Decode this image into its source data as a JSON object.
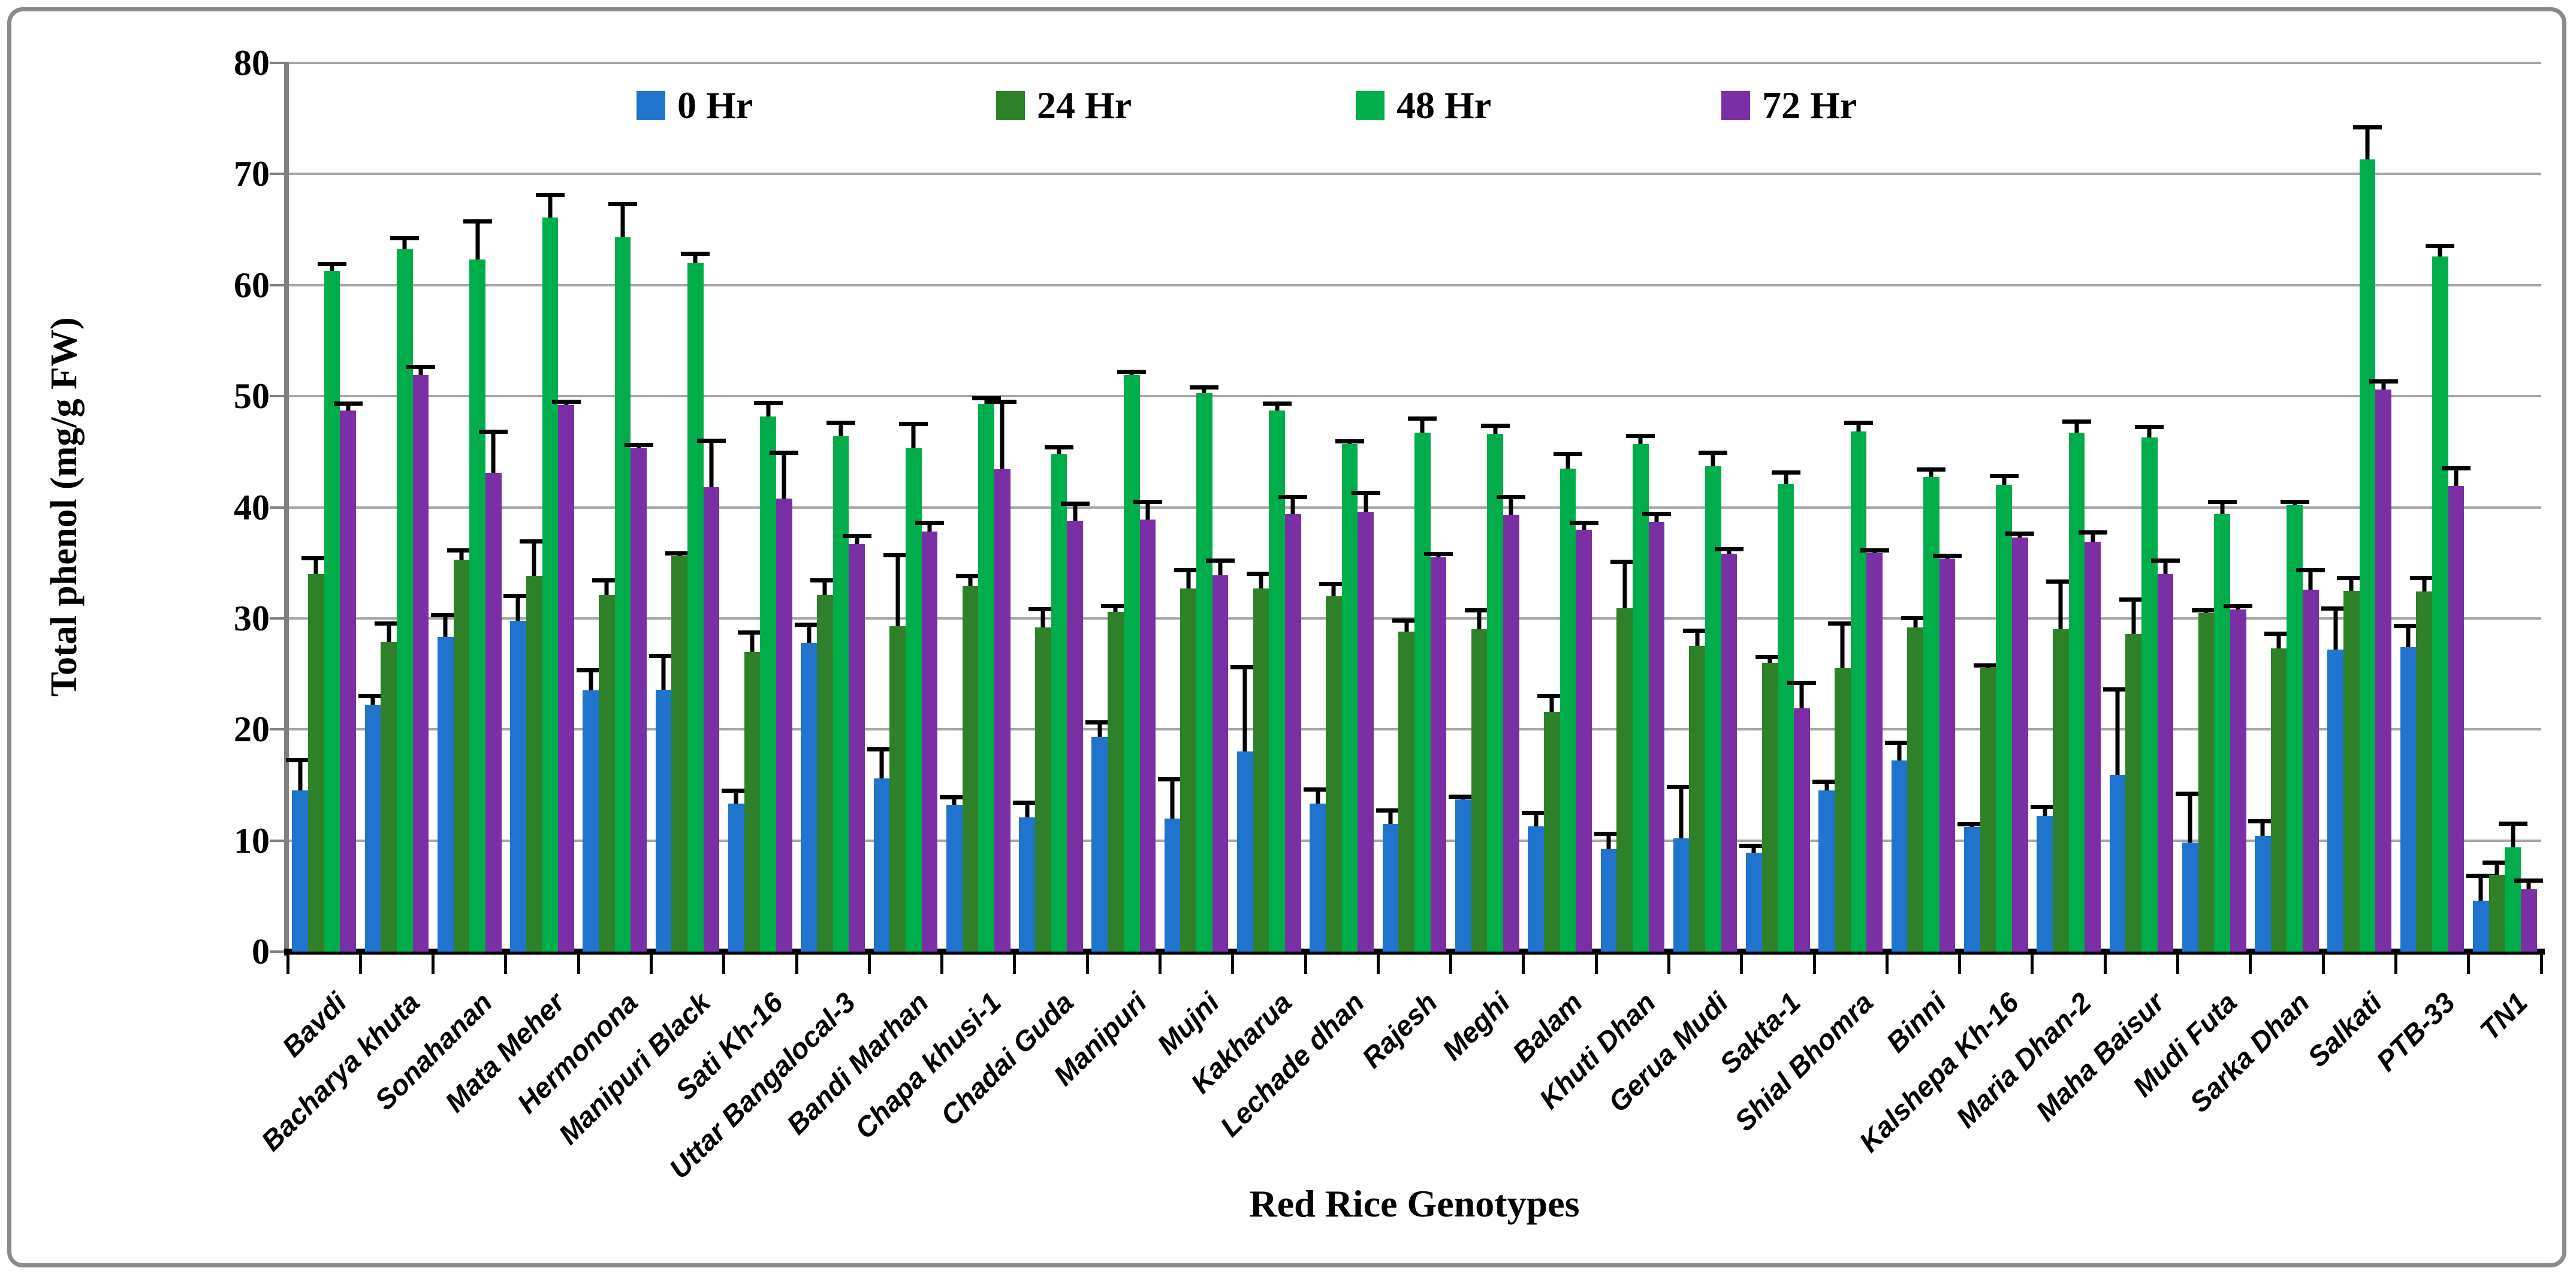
{
  "chart_data": {
    "type": "bar",
    "title": "",
    "xlabel": "Red Rice Genotypes",
    "ylabel": "Total phenol (mg/g FW)",
    "ylim": [
      0,
      80
    ],
    "ytick_step": 10,
    "ytick_labels": [
      "0",
      "10",
      "20",
      "30",
      "40",
      "50",
      "60",
      "70",
      "80"
    ],
    "grid": "horizontal",
    "legend_position": "top-inside",
    "error_bars": "upper",
    "categories": [
      "Bavdi",
      "Bacharya khuta",
      "Sonahanan",
      "Mata Meher",
      "Hermonona",
      "Manipuri Black",
      "Sati Kh-16",
      "Uttar Bangalocal-3",
      "Bandi Marhan",
      "Chapa khusi-1",
      "Chadai Guda",
      "Manipuri",
      "Mujni",
      "Kakharua",
      "Lechade dhan",
      "Rajesh",
      "Meghi",
      "Balam",
      "Khuti Dhan",
      "Gerua Mudi",
      "Sakta-1",
      "Shial Bhomra",
      "Binni",
      "Kalshepa Kh-16",
      "Maria Dhan-2",
      "Maha Baisur",
      "Mudi Futa",
      "Sarka Dhan",
      "Salkati",
      "PTB-33",
      "TN1"
    ],
    "series": [
      {
        "name": "0 Hr",
        "color": "#2174CD",
        "values": [
          14.5,
          22.2,
          28.3,
          29.8,
          23.5,
          23.6,
          13.3,
          27.8,
          15.6,
          13.2,
          12.1,
          19.3,
          12.0,
          18.0,
          13.3,
          11.5,
          13.7,
          11.3,
          9.2,
          10.2,
          8.9,
          14.5,
          17.2,
          11.2,
          12.2,
          15.9,
          9.8,
          10.4,
          27.2,
          27.4,
          4.6
        ],
        "errors": [
          2.9,
          1.0,
          2.2,
          2.4,
          2.0,
          3.2,
          1.4,
          1.8,
          2.8,
          0.9,
          1.5,
          1.5,
          3.7,
          7.8,
          1.5,
          1.4,
          0.4,
          1.4,
          1.6,
          4.8,
          0.8,
          1.0,
          1.8,
          0.4,
          1.0,
          7.9,
          4.6,
          1.5,
          3.9,
          2.1,
          2.4
        ]
      },
      {
        "name": "24 Hr",
        "color": "#2E8128",
        "values": [
          34.0,
          27.9,
          35.3,
          33.8,
          32.1,
          35.6,
          27.0,
          32.1,
          29.3,
          32.9,
          29.2,
          30.6,
          32.7,
          32.7,
          32.0,
          28.8,
          29.0,
          21.6,
          30.9,
          27.5,
          26.0,
          25.5,
          29.2,
          25.5,
          29.0,
          28.6,
          30.5,
          27.3,
          32.5,
          32.4,
          6.9
        ],
        "errors": [
          1.6,
          1.8,
          1.0,
          3.3,
          1.5,
          0.4,
          1.9,
          1.5,
          6.6,
          1.1,
          1.8,
          0.7,
          1.8,
          1.5,
          1.3,
          1.2,
          1.9,
          1.6,
          4.4,
          1.6,
          0.7,
          4.2,
          1.0,
          0.3,
          4.5,
          3.3,
          0.4,
          1.5,
          1.3,
          1.4,
          1.3
        ]
      },
      {
        "name": "48 Hr",
        "color": "#00AD4B",
        "values": [
          61.3,
          63.2,
          62.3,
          66.1,
          64.3,
          62.0,
          48.2,
          46.4,
          45.3,
          49.3,
          44.8,
          51.9,
          50.3,
          48.7,
          45.7,
          46.7,
          46.6,
          43.5,
          45.7,
          43.7,
          42.1,
          46.8,
          42.7,
          42.0,
          46.7,
          46.3,
          39.4,
          40.2,
          71.3,
          62.6,
          9.4
        ],
        "errors": [
          0.8,
          1.2,
          3.6,
          2.2,
          3.2,
          1.0,
          1.4,
          1.4,
          2.4,
          0.7,
          0.8,
          0.5,
          0.7,
          0.8,
          0.4,
          1.5,
          0.9,
          1.5,
          0.9,
          1.4,
          1.2,
          1.0,
          0.9,
          1.0,
          1.2,
          1.1,
          1.3,
          0.5,
          3.1,
          1.1,
          2.3
        ]
      },
      {
        "name": "72 Hr",
        "color": "#7B2FA4",
        "values": [
          48.7,
          51.9,
          43.1,
          49.2,
          45.3,
          41.8,
          40.8,
          36.7,
          37.8,
          43.4,
          38.8,
          38.9,
          33.9,
          39.4,
          39.6,
          35.5,
          39.3,
          38.0,
          38.7,
          35.8,
          21.9,
          35.9,
          35.4,
          37.3,
          36.9,
          34.0,
          30.8,
          32.6,
          50.6,
          41.9,
          5.6
        ],
        "errors": [
          0.8,
          0.9,
          3.9,
          0.5,
          0.5,
          4.4,
          4.3,
          0.9,
          1.0,
          6.3,
          1.7,
          1.8,
          1.5,
          1.7,
          1.9,
          0.5,
          1.8,
          0.8,
          0.9,
          0.6,
          2.5,
          0.4,
          0.3,
          0.5,
          1.0,
          1.4,
          0.5,
          1.9,
          0.9,
          1.8,
          1.0
        ]
      }
    ]
  },
  "style_colors": {
    "gridline": "#a6a6a6",
    "y_axis": "#808080",
    "x_axis": "#000000",
    "error_bar": "#000000",
    "figure_border": "#8a8a8a",
    "background": "#ffffff"
  }
}
